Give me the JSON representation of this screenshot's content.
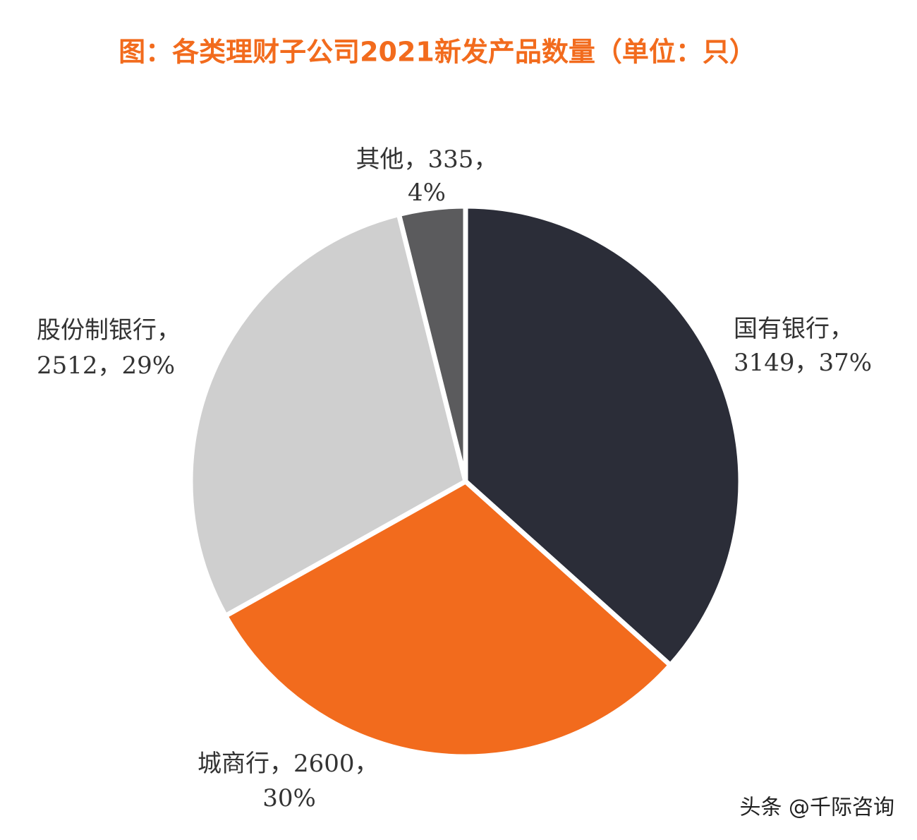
{
  "chart_data": {
    "type": "pie",
    "title": "图：各类理财子公司2021新发产品数量（单位：只）",
    "values": [
      3149,
      2600,
      2512,
      335
    ],
    "value_labels": [
      [
        "国有银行，",
        "3149，37%"
      ],
      [
        "城商行，2600，",
        "30%"
      ],
      [
        "股份制银行，",
        "2512，29%"
      ],
      [
        "其他，335，",
        "4%"
      ]
    ],
    "colors": [
      "#2b2d38",
      "#f26b1d",
      "#cfcfcf",
      "#5b5b5d"
    ]
  },
  "watermark": "头条 @千际咨询"
}
